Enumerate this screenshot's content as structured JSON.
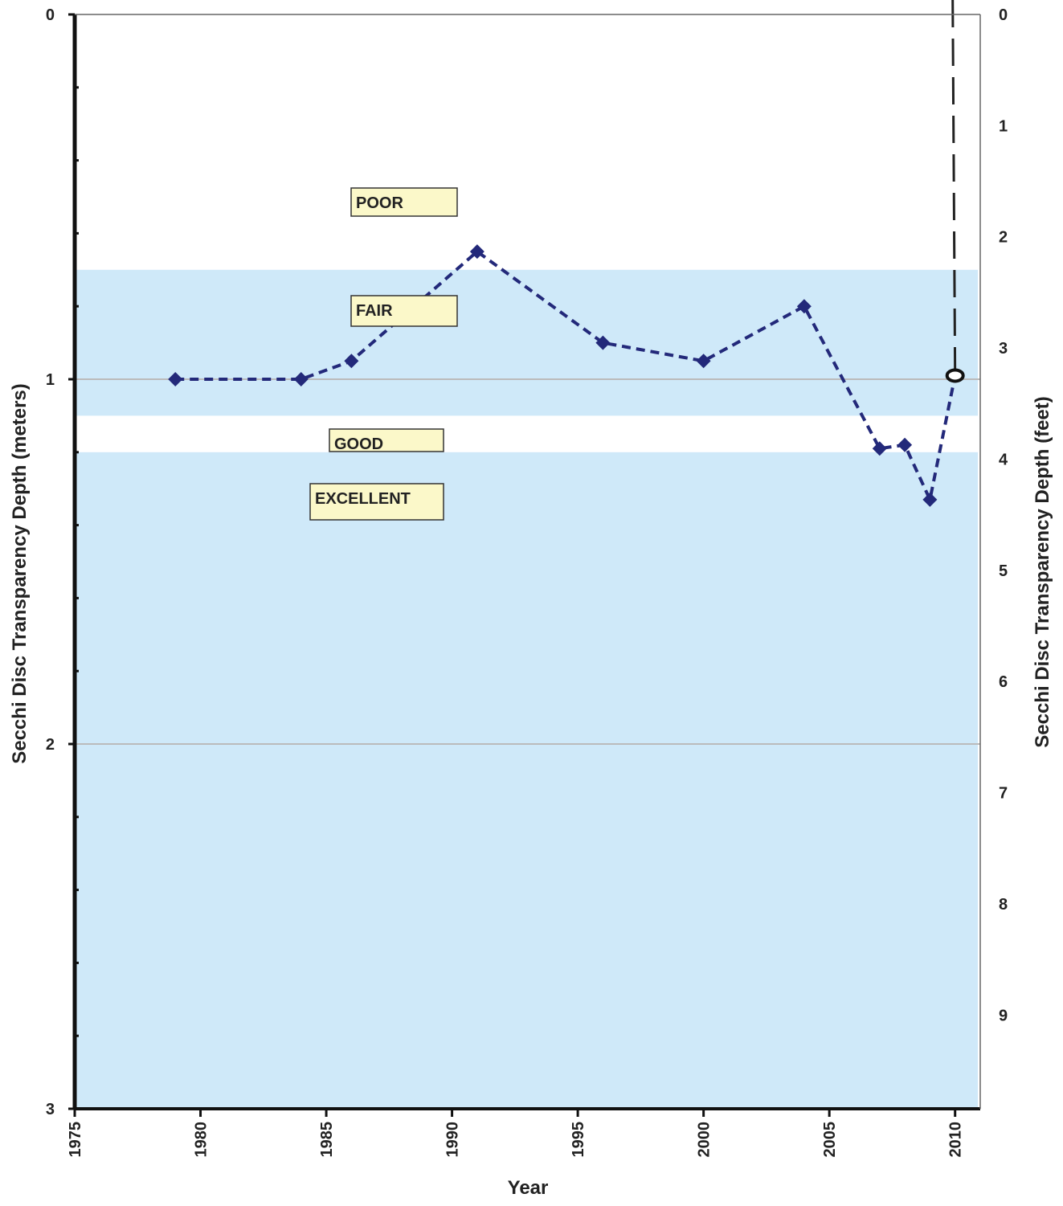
{
  "colors": {
    "band_fill": "#cfe9f9",
    "label_fill": "#fbf8c9",
    "series": "#23297a",
    "gridline": "#bbbbbb",
    "axis": "#111111"
  },
  "chart_data": {
    "type": "line",
    "title": "",
    "xlabel": "Year",
    "ylabel": "Secchi Disc Transparency Depth (meters)",
    "y2label": "Secchi Disc Transparency Depth (feet)",
    "xlim": [
      1975,
      2011
    ],
    "ylim": [
      3,
      0
    ],
    "y_inverted": true,
    "y2lim": [
      9.843,
      0
    ],
    "x_ticks": [
      "1975",
      "1980",
      "1985",
      "1990",
      "1995",
      "2000",
      "2005",
      "2010"
    ],
    "y_ticks": [
      "0",
      "1",
      "2",
      "3"
    ],
    "y2_ticks": [
      "0",
      "1",
      "2",
      "3",
      "4",
      "5",
      "6",
      "7",
      "8",
      "9"
    ],
    "gridlines": [
      1,
      2
    ],
    "bands": [
      {
        "label": "POOR",
        "from": 0,
        "to": 0.7,
        "shaded": false
      },
      {
        "label": "FAIR",
        "from": 0.7,
        "to": 1.1,
        "shaded": true
      },
      {
        "label": "GOOD",
        "from": 1.1,
        "to": 1.2,
        "shaded": false
      },
      {
        "label": "EXCELLENT",
        "from": 1.2,
        "to": 3,
        "shaded": true
      }
    ],
    "series": [
      {
        "x": [
          1979,
          1984,
          1986,
          1991,
          1996,
          2000,
          2004,
          2007,
          2008,
          2009,
          2010
        ],
        "y": [
          1.0,
          1.0,
          0.95,
          0.65,
          0.9,
          0.95,
          0.8,
          1.19,
          1.18,
          1.33,
          0.99
        ]
      }
    ],
    "reference_line": {
      "x": 2010,
      "style": "dashed"
    }
  }
}
